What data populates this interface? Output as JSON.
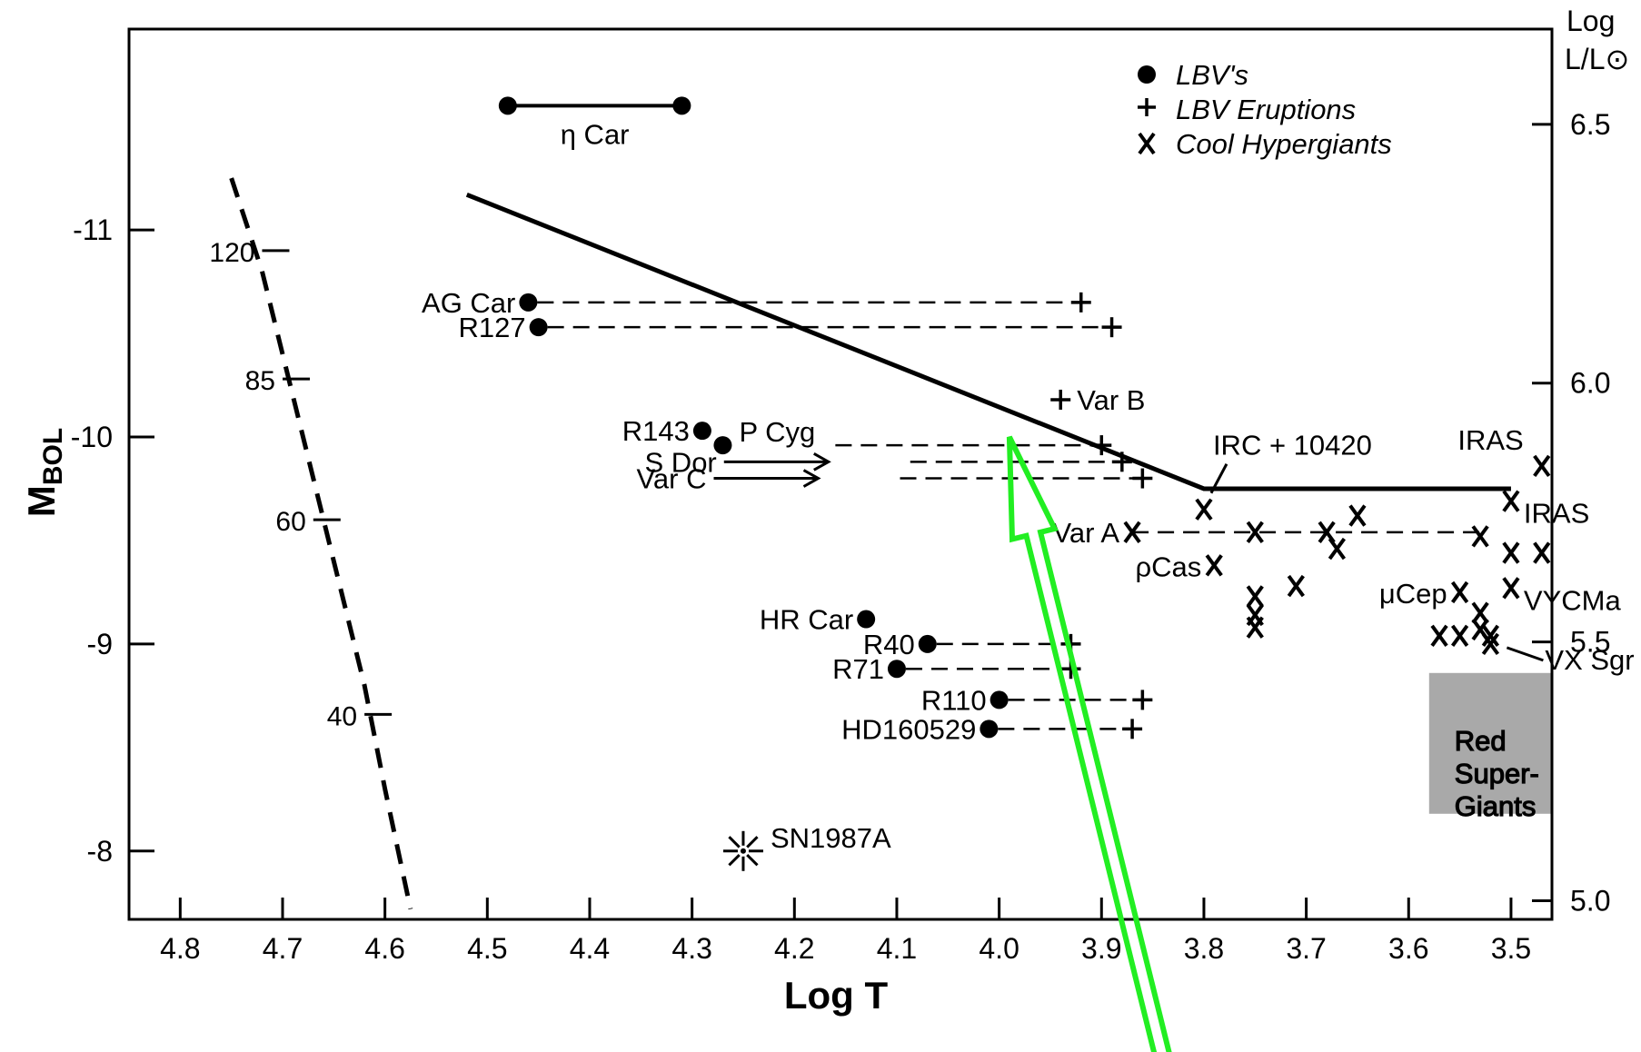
{
  "chart_data": {
    "type": "scatter",
    "xlabel": "Log T",
    "ylabel": "M",
    "ylabel_sub": "BOL",
    "right_axis_title": [
      "Log",
      "L/L⊙"
    ],
    "x_ticks": [
      "4.8",
      "4.7",
      "4.6",
      "4.5",
      "4.4",
      "4.3",
      "4.2",
      "4.1",
      "4.0",
      "3.9",
      "3.8",
      "3.7",
      "3.6",
      "3.5"
    ],
    "y_ticks": [
      "-11",
      "-10",
      "-9",
      "-8"
    ],
    "right_ticks": [
      "6.5",
      "6.0",
      "5.5",
      "5.0"
    ],
    "xlim": [
      4.85,
      3.46
    ],
    "ylim": [
      -7.67,
      -11.97
    ],
    "legend": {
      "position": "top-right",
      "items": [
        {
          "symbol": "filled-circle",
          "label": "LBV's"
        },
        {
          "symbol": "plus",
          "label": "LBV Eruptions"
        },
        {
          "symbol": "x",
          "label": "Cool Hypergiants"
        }
      ]
    },
    "lbvs": [
      {
        "label": "AG Car",
        "x": 4.46,
        "y": -10.65,
        "erupt_x": 3.92
      },
      {
        "label": "R127",
        "x": 4.45,
        "y": -10.53,
        "erupt_x": 3.89
      },
      {
        "label": "R143",
        "x": 4.29,
        "y": -10.03
      },
      {
        "label": "P Cyg",
        "x": 4.27,
        "y": -9.96,
        "line_from": 4.16,
        "erupt_x": 3.9
      },
      {
        "label": "S Dor",
        "x": 4.22,
        "y": -9.88,
        "arrow": true,
        "erupt_x": 3.88
      },
      {
        "label": "Var C",
        "x": 4.23,
        "y": -9.8,
        "arrow": true,
        "erupt_x": 3.86
      },
      {
        "label": "HR Car",
        "x": 4.13,
        "y": -9.12
      },
      {
        "label": "R40",
        "x": 4.07,
        "y": -9.0,
        "erupt_x": 3.93
      },
      {
        "label": "R71",
        "x": 4.1,
        "y": -8.88,
        "erupt_x": 3.93
      },
      {
        "label": "R110",
        "x": 4.0,
        "y": -8.73,
        "erupt_x": 3.86
      },
      {
        "label": "HD160529",
        "x": 4.01,
        "y": -8.59,
        "erupt_x": 3.87
      }
    ],
    "eta_car": {
      "label": "η Car",
      "x": [
        4.48,
        4.31
      ],
      "y": -11.6
    },
    "var_b": {
      "label": "Var B",
      "x": 3.94,
      "y": -10.18
    },
    "var_a": {
      "label": "Var A",
      "x_start": 3.87,
      "x_end": 3.53,
      "y": -9.54
    },
    "hypergiants": [
      {
        "label": "IRC + 10420",
        "x": 3.8,
        "y": -9.65
      },
      {
        "label": "ρCas",
        "x": 3.79,
        "y": -9.38
      },
      {
        "label": "IRAS",
        "x": 3.47,
        "y": -9.86
      },
      {
        "label": "IRAS",
        "x": 3.5,
        "y": -9.69
      },
      {
        "label": "μCep",
        "x": 3.55,
        "y": -9.25
      },
      {
        "label": "VYCMa",
        "x": 3.5,
        "y": -9.27
      },
      {
        "label": "VX Sgr",
        "x": 3.52,
        "y": -9.0
      },
      {
        "label": "",
        "x": 3.75,
        "y": -9.54
      },
      {
        "label": "",
        "x": 3.68,
        "y": -9.54
      },
      {
        "label": "",
        "x": 3.65,
        "y": -9.62
      },
      {
        "label": "",
        "x": 3.67,
        "y": -9.46
      },
      {
        "label": "",
        "x": 3.75,
        "y": -9.23
      },
      {
        "label": "",
        "x": 3.75,
        "y": -9.14
      },
      {
        "label": "",
        "x": 3.75,
        "y": -9.08
      },
      {
        "label": "",
        "x": 3.71,
        "y": -9.28
      },
      {
        "label": "",
        "x": 3.53,
        "y": -9.52
      },
      {
        "label": "",
        "x": 3.5,
        "y": -9.44
      },
      {
        "label": "",
        "x": 3.47,
        "y": -9.44
      },
      {
        "label": "",
        "x": 3.53,
        "y": -9.15
      },
      {
        "label": "",
        "x": 3.53,
        "y": -9.07
      },
      {
        "label": "",
        "x": 3.52,
        "y": -9.04
      },
      {
        "label": "",
        "x": 3.57,
        "y": -9.04
      },
      {
        "label": "",
        "x": 3.55,
        "y": -9.04
      }
    ],
    "sn1987a": {
      "label": "SN1987A",
      "x": 4.25,
      "y": -8.0
    },
    "eddington_limit": {
      "x": [
        4.52,
        3.8,
        3.5
      ],
      "y": [
        -11.17,
        -9.75,
        -9.75
      ]
    },
    "zams": [
      [
        4.75,
        -11.25
      ],
      [
        4.72,
        -10.8
      ],
      [
        4.7,
        -10.4
      ],
      [
        4.675,
        -9.9
      ],
      [
        4.65,
        -9.4
      ],
      [
        4.62,
        -8.8
      ],
      [
        4.6,
        -8.3
      ],
      [
        4.575,
        -7.72
      ]
    ],
    "mass_ticks": [
      {
        "label": "120",
        "x": 4.72,
        "y": -10.9
      },
      {
        "label": "85",
        "x": 4.7,
        "y": -10.28
      },
      {
        "label": "60",
        "x": 4.67,
        "y": -9.6
      },
      {
        "label": "40",
        "x": 4.62,
        "y": -8.66
      }
    ],
    "red_supergiants": {
      "label": [
        "Red",
        "Super-",
        "Giants"
      ],
      "x": [
        3.58,
        3.46
      ],
      "y": [
        -8.18,
        -8.86
      ]
    },
    "annotation_arrow": {
      "color": "#22ee22",
      "tip": [
        3.99,
        -10.0
      ],
      "tail": [
        3.84,
        -7.0
      ]
    }
  }
}
